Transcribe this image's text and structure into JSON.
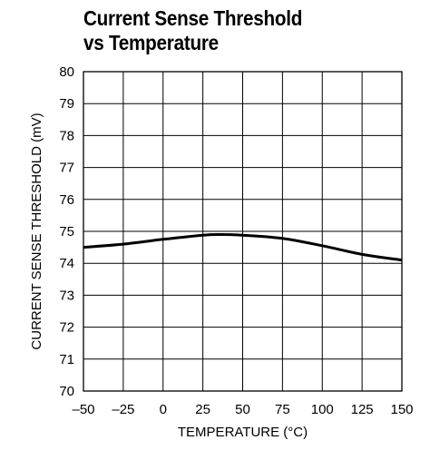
{
  "chart_data": {
    "type": "line",
    "title_lines": [
      "Current Sense Threshold",
      "vs Temperature"
    ],
    "xlabel": "TEMPERATURE (°C)",
    "ylabel": "CURRENT SENSE THRESHOLD (mV)",
    "xlim": [
      -50,
      150
    ],
    "ylim": [
      70,
      80
    ],
    "x_ticks": [
      -50,
      -25,
      0,
      25,
      50,
      75,
      100,
      125,
      150
    ],
    "y_ticks": [
      70,
      71,
      72,
      73,
      74,
      75,
      76,
      77,
      78,
      79,
      80
    ],
    "x_tick_labels": [
      "–50",
      "–25",
      "0",
      "25",
      "50",
      "75",
      "100",
      "125",
      "150"
    ],
    "y_tick_labels": [
      "70",
      "71",
      "72",
      "73",
      "74",
      "75",
      "76",
      "77",
      "78",
      "79",
      "80"
    ],
    "grid": true,
    "legend": "none",
    "series": [
      {
        "color": "#000000",
        "x": [
          -50,
          -25,
          0,
          25,
          37,
          50,
          75,
          100,
          125,
          150
        ],
        "y": [
          74.5,
          74.6,
          74.75,
          74.88,
          74.9,
          74.88,
          74.78,
          74.55,
          74.28,
          74.1
        ]
      }
    ]
  }
}
